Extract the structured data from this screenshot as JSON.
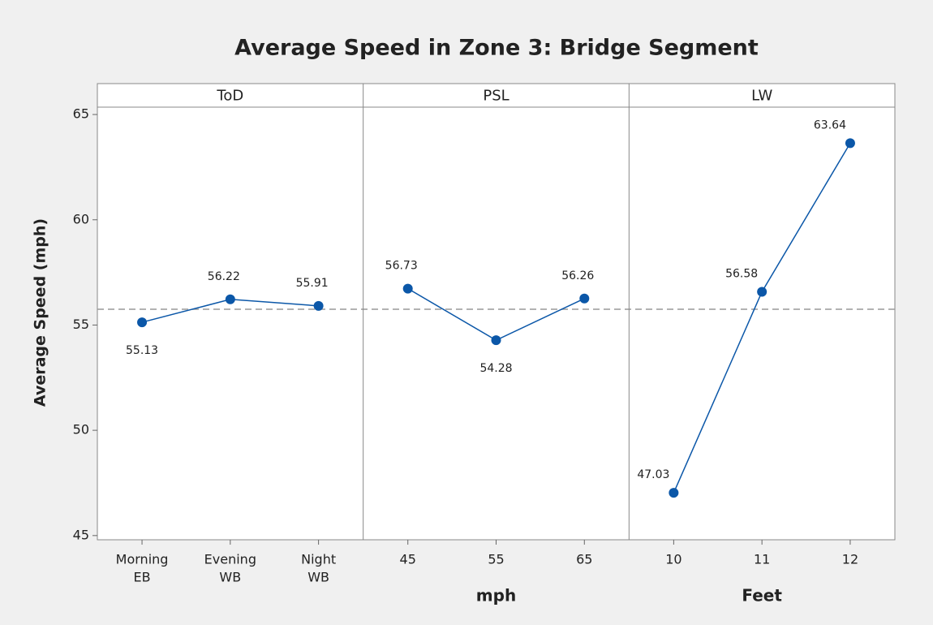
{
  "chart_data": {
    "type": "line",
    "title": "Average Speed in Zone 3: Bridge Segment",
    "ylabel": "Average Speed (mph)",
    "ylim": [
      44.8,
      65.35
    ],
    "yticks": [
      45,
      50,
      55,
      60,
      65
    ],
    "reference_line": 55.75,
    "color": "#0b57a8",
    "panels": [
      {
        "label": "ToD",
        "categories": [
          [
            "Morning",
            "EB"
          ],
          [
            "Evening",
            "WB"
          ],
          [
            "Night",
            "WB"
          ]
        ],
        "values": [
          55.13,
          56.22,
          55.91
        ]
      },
      {
        "label": "PSL",
        "xlabel": "mph",
        "categories": [
          [
            "45"
          ],
          [
            "55"
          ],
          [
            "65"
          ]
        ],
        "values": [
          56.73,
          54.28,
          56.26
        ]
      },
      {
        "label": "LW",
        "xlabel": "Feet",
        "categories": [
          [
            "10"
          ],
          [
            "11"
          ],
          [
            "12"
          ]
        ],
        "values": [
          47.03,
          56.58,
          63.64
        ]
      }
    ]
  }
}
